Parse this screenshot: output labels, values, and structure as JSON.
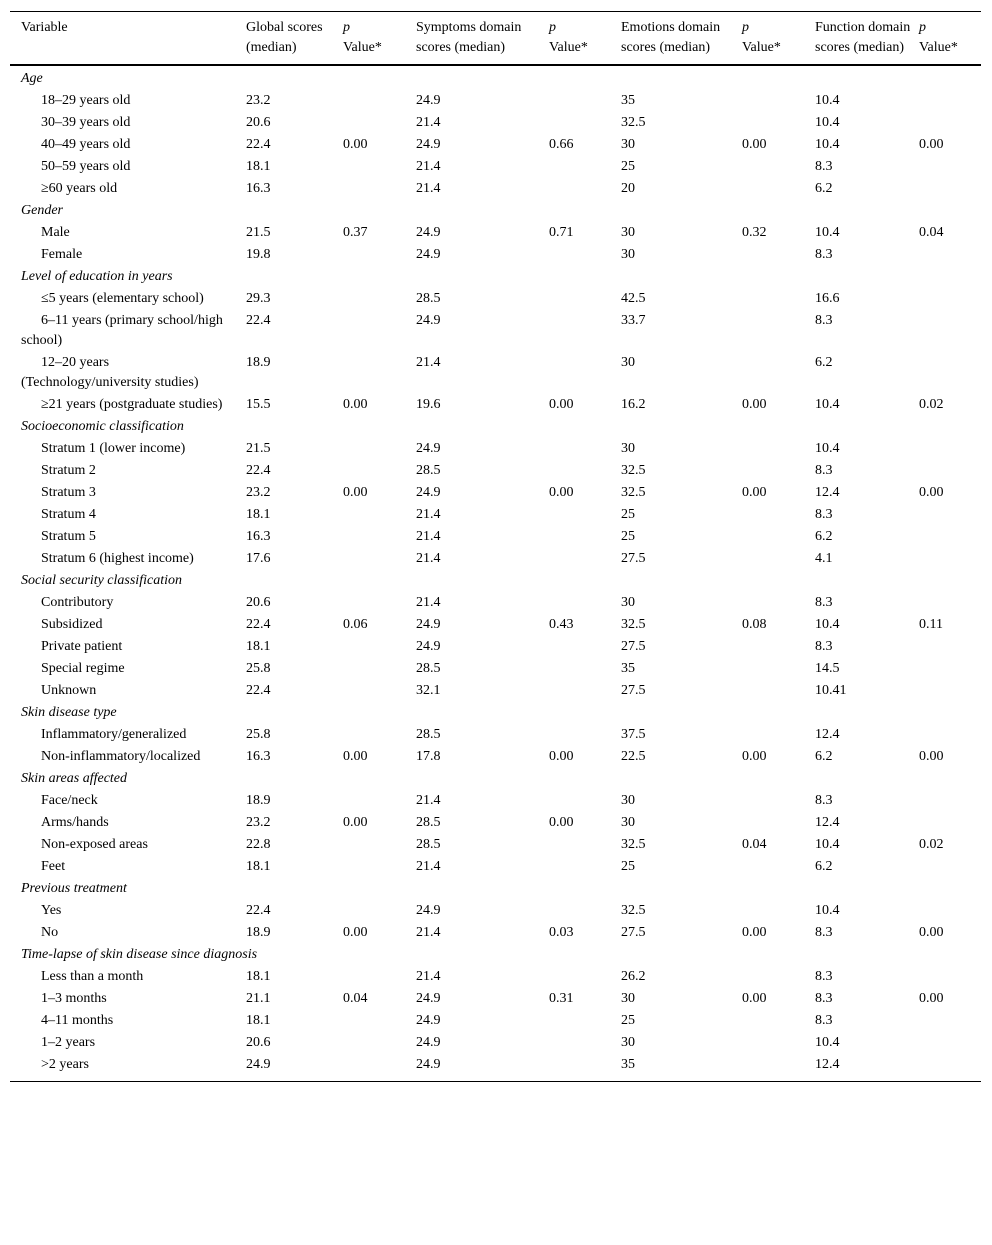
{
  "header": [
    {
      "text": "Variable"
    },
    {
      "text": "Global scores (median)"
    },
    {
      "p": "p",
      "text": "Value*"
    },
    {
      "text": "Symptoms domain scores (median)"
    },
    {
      "p": "p",
      "text": "Value*"
    },
    {
      "text": "Emotions domain scores (median)"
    },
    {
      "p": "p",
      "text": "Value*"
    },
    {
      "text": "Function domain scores (median)"
    },
    {
      "p": "p",
      "text": "Value*"
    }
  ],
  "rows": [
    {
      "group": "Age"
    },
    {
      "v": [
        "18–29 years old",
        "23.2",
        "",
        "24.9",
        "",
        "35",
        "",
        "10.4",
        ""
      ]
    },
    {
      "v": [
        "30–39 years old",
        "20.6",
        "",
        "21.4",
        "",
        "32.5",
        "",
        "10.4",
        ""
      ]
    },
    {
      "v": [
        "40–49 years old",
        "22.4",
        "0.00",
        "24.9",
        "0.66",
        "30",
        "0.00",
        "10.4",
        "0.00"
      ]
    },
    {
      "v": [
        "50–59 years old",
        "18.1",
        "",
        "21.4",
        "",
        "25",
        "",
        "8.3",
        ""
      ]
    },
    {
      "v": [
        "≥60 years old",
        "16.3",
        "",
        "21.4",
        "",
        "20",
        "",
        "6.2",
        ""
      ]
    },
    {
      "group": "Gender"
    },
    {
      "v": [
        "Male",
        "21.5",
        "0.37",
        "24.9",
        "0.71",
        "30",
        "0.32",
        "10.4",
        "0.04"
      ]
    },
    {
      "v": [
        "Female",
        "19.8",
        "",
        "24.9",
        "",
        "30",
        "",
        "8.3",
        ""
      ]
    },
    {
      "group": "Level of education in years"
    },
    {
      "v": [
        "≤5 years (elementary school)",
        "29.3",
        "",
        "28.5",
        "",
        "42.5",
        "",
        "16.6",
        ""
      ]
    },
    {
      "v": [
        "6–11 years (primary school/high school)",
        "22.4",
        "",
        "24.9",
        "",
        "33.7",
        "",
        "8.3",
        ""
      ]
    },
    {
      "v": [
        "12–20 years (Technology/university studies)",
        "18.9",
        "",
        "21.4",
        "",
        "30",
        "",
        "6.2",
        ""
      ]
    },
    {
      "v": [
        "≥21 years (postgraduate studies)",
        "15.5",
        "0.00",
        "19.6",
        "0.00",
        "16.2",
        "0.00",
        "10.4",
        "0.02"
      ]
    },
    {
      "group": "Socioeconomic classification"
    },
    {
      "v": [
        "Stratum 1 (lower income)",
        "21.5",
        "",
        "24.9",
        "",
        "30",
        "",
        "10.4",
        ""
      ]
    },
    {
      "v": [
        "Stratum 2",
        "22.4",
        "",
        "28.5",
        "",
        "32.5",
        "",
        "8.3",
        ""
      ]
    },
    {
      "v": [
        "Stratum 3",
        "23.2",
        "0.00",
        "24.9",
        "0.00",
        "32.5",
        "0.00",
        "12.4",
        "0.00"
      ]
    },
    {
      "v": [
        "Stratum 4",
        "18.1",
        "",
        "21.4",
        "",
        "25",
        "",
        "8.3",
        ""
      ]
    },
    {
      "v": [
        "Stratum 5",
        "16.3",
        "",
        "21.4",
        "",
        "25",
        "",
        "6.2",
        ""
      ]
    },
    {
      "v": [
        "Stratum 6 (highest income)",
        "17.6",
        "",
        "21.4",
        "",
        "27.5",
        "",
        "4.1",
        ""
      ]
    },
    {
      "group": "Social security classification"
    },
    {
      "v": [
        "Contributory",
        "20.6",
        "",
        "21.4",
        "",
        "30",
        "",
        "8.3",
        ""
      ]
    },
    {
      "v": [
        "Subsidized",
        "22.4",
        "0.06",
        "24.9",
        "0.43",
        "32.5",
        "0.08",
        "10.4",
        "0.11"
      ]
    },
    {
      "v": [
        "Private patient",
        "18.1",
        "",
        "24.9",
        "",
        "27.5",
        "",
        "8.3",
        ""
      ]
    },
    {
      "v": [
        "Special regime",
        "25.8",
        "",
        "28.5",
        "",
        "35",
        "",
        "14.5",
        ""
      ]
    },
    {
      "v": [
        "Unknown",
        "22.4",
        "",
        "32.1",
        "",
        "27.5",
        "",
        "10.41",
        ""
      ]
    },
    {
      "group": "Skin disease type"
    },
    {
      "v": [
        "Inflammatory/generalized",
        "25.8",
        "",
        "28.5",
        "",
        "37.5",
        "",
        "12.4",
        ""
      ]
    },
    {
      "v": [
        "Non-inflammatory/localized",
        "16.3",
        "0.00",
        "17.8",
        "0.00",
        "22.5",
        "0.00",
        "6.2",
        "0.00"
      ]
    },
    {
      "group": "Skin areas affected"
    },
    {
      "v": [
        "Face/neck",
        "18.9",
        "",
        "21.4",
        "",
        "30",
        "",
        "8.3",
        ""
      ]
    },
    {
      "v": [
        "Arms/hands",
        "23.2",
        "0.00",
        "28.5",
        "0.00",
        "30",
        "",
        "12.4",
        ""
      ]
    },
    {
      "v": [
        "Non-exposed areas",
        "22.8",
        "",
        "28.5",
        "",
        "32.5",
        "0.04",
        "10.4",
        "0.02"
      ]
    },
    {
      "v": [
        "Feet",
        "18.1",
        "",
        "21.4",
        "",
        "25",
        "",
        "6.2",
        ""
      ]
    },
    {
      "group": "Previous treatment"
    },
    {
      "v": [
        "Yes",
        "22.4",
        "",
        "24.9",
        "",
        "32.5",
        "",
        "10.4",
        ""
      ]
    },
    {
      "v": [
        "No",
        "18.9",
        "0.00",
        "21.4",
        "0.03",
        "27.5",
        "0.00",
        "8.3",
        "0.00"
      ]
    },
    {
      "group": "Time-lapse of skin disease since diagnosis"
    },
    {
      "v": [
        "Less than a month",
        "18.1",
        "",
        "21.4",
        "",
        "26.2",
        "",
        "8.3",
        ""
      ]
    },
    {
      "v": [
        "1–3 months",
        "21.1",
        "0.04",
        "24.9",
        "0.31",
        "30",
        "0.00",
        "8.3",
        "0.00"
      ]
    },
    {
      "v": [
        "4–11 months",
        "18.1",
        "",
        "24.9",
        "",
        "25",
        "",
        "8.3",
        ""
      ]
    },
    {
      "v": [
        "1–2 years",
        "20.6",
        "",
        "24.9",
        "",
        "30",
        "",
        "10.4",
        ""
      ]
    },
    {
      "v": [
        ">2 years",
        "24.9",
        "",
        "24.9",
        "",
        "35",
        "",
        "12.4",
        ""
      ]
    }
  ]
}
